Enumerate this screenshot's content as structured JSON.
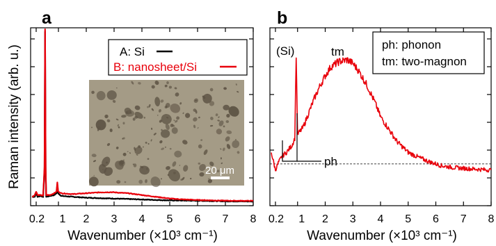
{
  "colors": {
    "si": "#000000",
    "nanosheet": "#e8000b",
    "inset_background": "#a49b86",
    "inset_flake": "#5e5445",
    "scale_bar": "#ffffff"
  },
  "chart_data": [
    {
      "panel": "a",
      "type": "line",
      "xlabel": "Wavenumber (×10³ cm⁻¹)",
      "ylabel": "Raman intensity (arb. u.)",
      "xlim": [
        0,
        8
      ],
      "ylim": [
        0,
        1
      ],
      "x_ticks": [
        0.2,
        1,
        2,
        3,
        4,
        5,
        6,
        7,
        8
      ],
      "x_tick_labels": [
        "0.2",
        "1",
        "2",
        "3",
        "4",
        "5",
        "6",
        "7",
        "8"
      ],
      "y_tick_labels_visible": false,
      "grid": false,
      "legend_position": "top-right",
      "series": [
        {
          "name": "A: Si",
          "color": "#000000",
          "points": [
            [
              0.05,
              0.05
            ],
            [
              0.15,
              0.05
            ],
            [
              0.2,
              0.075
            ],
            [
              0.25,
              0.05
            ],
            [
              0.35,
              0.055
            ],
            [
              0.45,
              0.05
            ],
            [
              0.5,
              0.2
            ],
            [
              0.52,
              0.98
            ],
            [
              0.54,
              0.2
            ],
            [
              0.56,
              0.05
            ],
            [
              0.7,
              0.055
            ],
            [
              0.85,
              0.06
            ],
            [
              0.93,
              0.07
            ],
            [
              0.96,
              0.12
            ],
            [
              0.99,
              0.07
            ],
            [
              1.1,
              0.055
            ],
            [
              1.5,
              0.05
            ],
            [
              2,
              0.045
            ],
            [
              3,
              0.04
            ],
            [
              4,
              0.035
            ],
            [
              5,
              0.03
            ],
            [
              6,
              0.028
            ],
            [
              7,
              0.025
            ],
            [
              8,
              0.024
            ]
          ]
        },
        {
          "name": "B: nanosheet/Si",
          "color": "#e8000b",
          "points": [
            [
              0.05,
              0.05
            ],
            [
              0.15,
              0.06
            ],
            [
              0.2,
              0.08
            ],
            [
              0.25,
              0.06
            ],
            [
              0.35,
              0.06
            ],
            [
              0.45,
              0.055
            ],
            [
              0.5,
              0.22
            ],
            [
              0.52,
              0.99
            ],
            [
              0.54,
              0.22
            ],
            [
              0.56,
              0.06
            ],
            [
              0.7,
              0.06
            ],
            [
              0.85,
              0.07
            ],
            [
              0.93,
              0.08
            ],
            [
              0.96,
              0.13
            ],
            [
              0.99,
              0.08
            ],
            [
              1.1,
              0.07
            ],
            [
              1.5,
              0.065
            ],
            [
              2,
              0.07
            ],
            [
              2.5,
              0.075
            ],
            [
              2.9,
              0.076
            ],
            [
              3.5,
              0.07
            ],
            [
              4,
              0.06
            ],
            [
              4.5,
              0.05
            ],
            [
              5,
              0.04
            ],
            [
              5.5,
              0.035
            ],
            [
              6,
              0.032
            ],
            [
              6.5,
              0.03
            ],
            [
              7,
              0.028
            ],
            [
              8,
              0.027
            ]
          ]
        }
      ],
      "inset": {
        "description_type": "optical micrograph",
        "scale_bar_label": "20 μm"
      }
    },
    {
      "panel": "b",
      "type": "line",
      "xlabel": "Wavenumber (×10³ cm⁻¹)",
      "xlim": [
        0,
        8
      ],
      "ylim": [
        0,
        1
      ],
      "x_ticks": [
        0.2,
        1,
        2,
        3,
        4,
        5,
        6,
        7,
        8
      ],
      "x_tick_labels": [
        "0.2",
        "1",
        "2",
        "3",
        "4",
        "5",
        "6",
        "7",
        "8"
      ],
      "y_tick_labels_visible": false,
      "grid": false,
      "baseline_dashed": 0.235,
      "series": [
        {
          "name": "nanosheet/Si",
          "color": "#e8000b",
          "points": [
            [
              0.05,
              0.3
            ],
            [
              0.2,
              0.2
            ],
            [
              0.3,
              0.24
            ],
            [
              0.45,
              0.28
            ],
            [
              0.6,
              0.3
            ],
            [
              0.8,
              0.34
            ],
            [
              0.9,
              0.38
            ],
            [
              0.95,
              0.85
            ],
            [
              1.0,
              0.4
            ],
            [
              1.2,
              0.44
            ],
            [
              1.4,
              0.52
            ],
            [
              1.6,
              0.6
            ],
            [
              1.8,
              0.67
            ],
            [
              2.0,
              0.73
            ],
            [
              2.2,
              0.78
            ],
            [
              2.5,
              0.81
            ],
            [
              2.8,
              0.82
            ],
            [
              3.0,
              0.8
            ],
            [
              3.2,
              0.76
            ],
            [
              3.5,
              0.68
            ],
            [
              3.8,
              0.58
            ],
            [
              4.0,
              0.5
            ],
            [
              4.3,
              0.43
            ],
            [
              4.6,
              0.36
            ],
            [
              5.0,
              0.3
            ],
            [
              5.4,
              0.27
            ],
            [
              5.8,
              0.245
            ],
            [
              6.2,
              0.225
            ],
            [
              6.6,
              0.215
            ],
            [
              7.0,
              0.21
            ],
            [
              7.5,
              0.205
            ],
            [
              8.0,
              0.2
            ]
          ]
        }
      ],
      "annotations": {
        "si_peak": "(Si)",
        "two_magnon": "tm",
        "phonon": "ph"
      },
      "legend_box": [
        "ph: phonon",
        "tm: two-magnon"
      ]
    }
  ]
}
